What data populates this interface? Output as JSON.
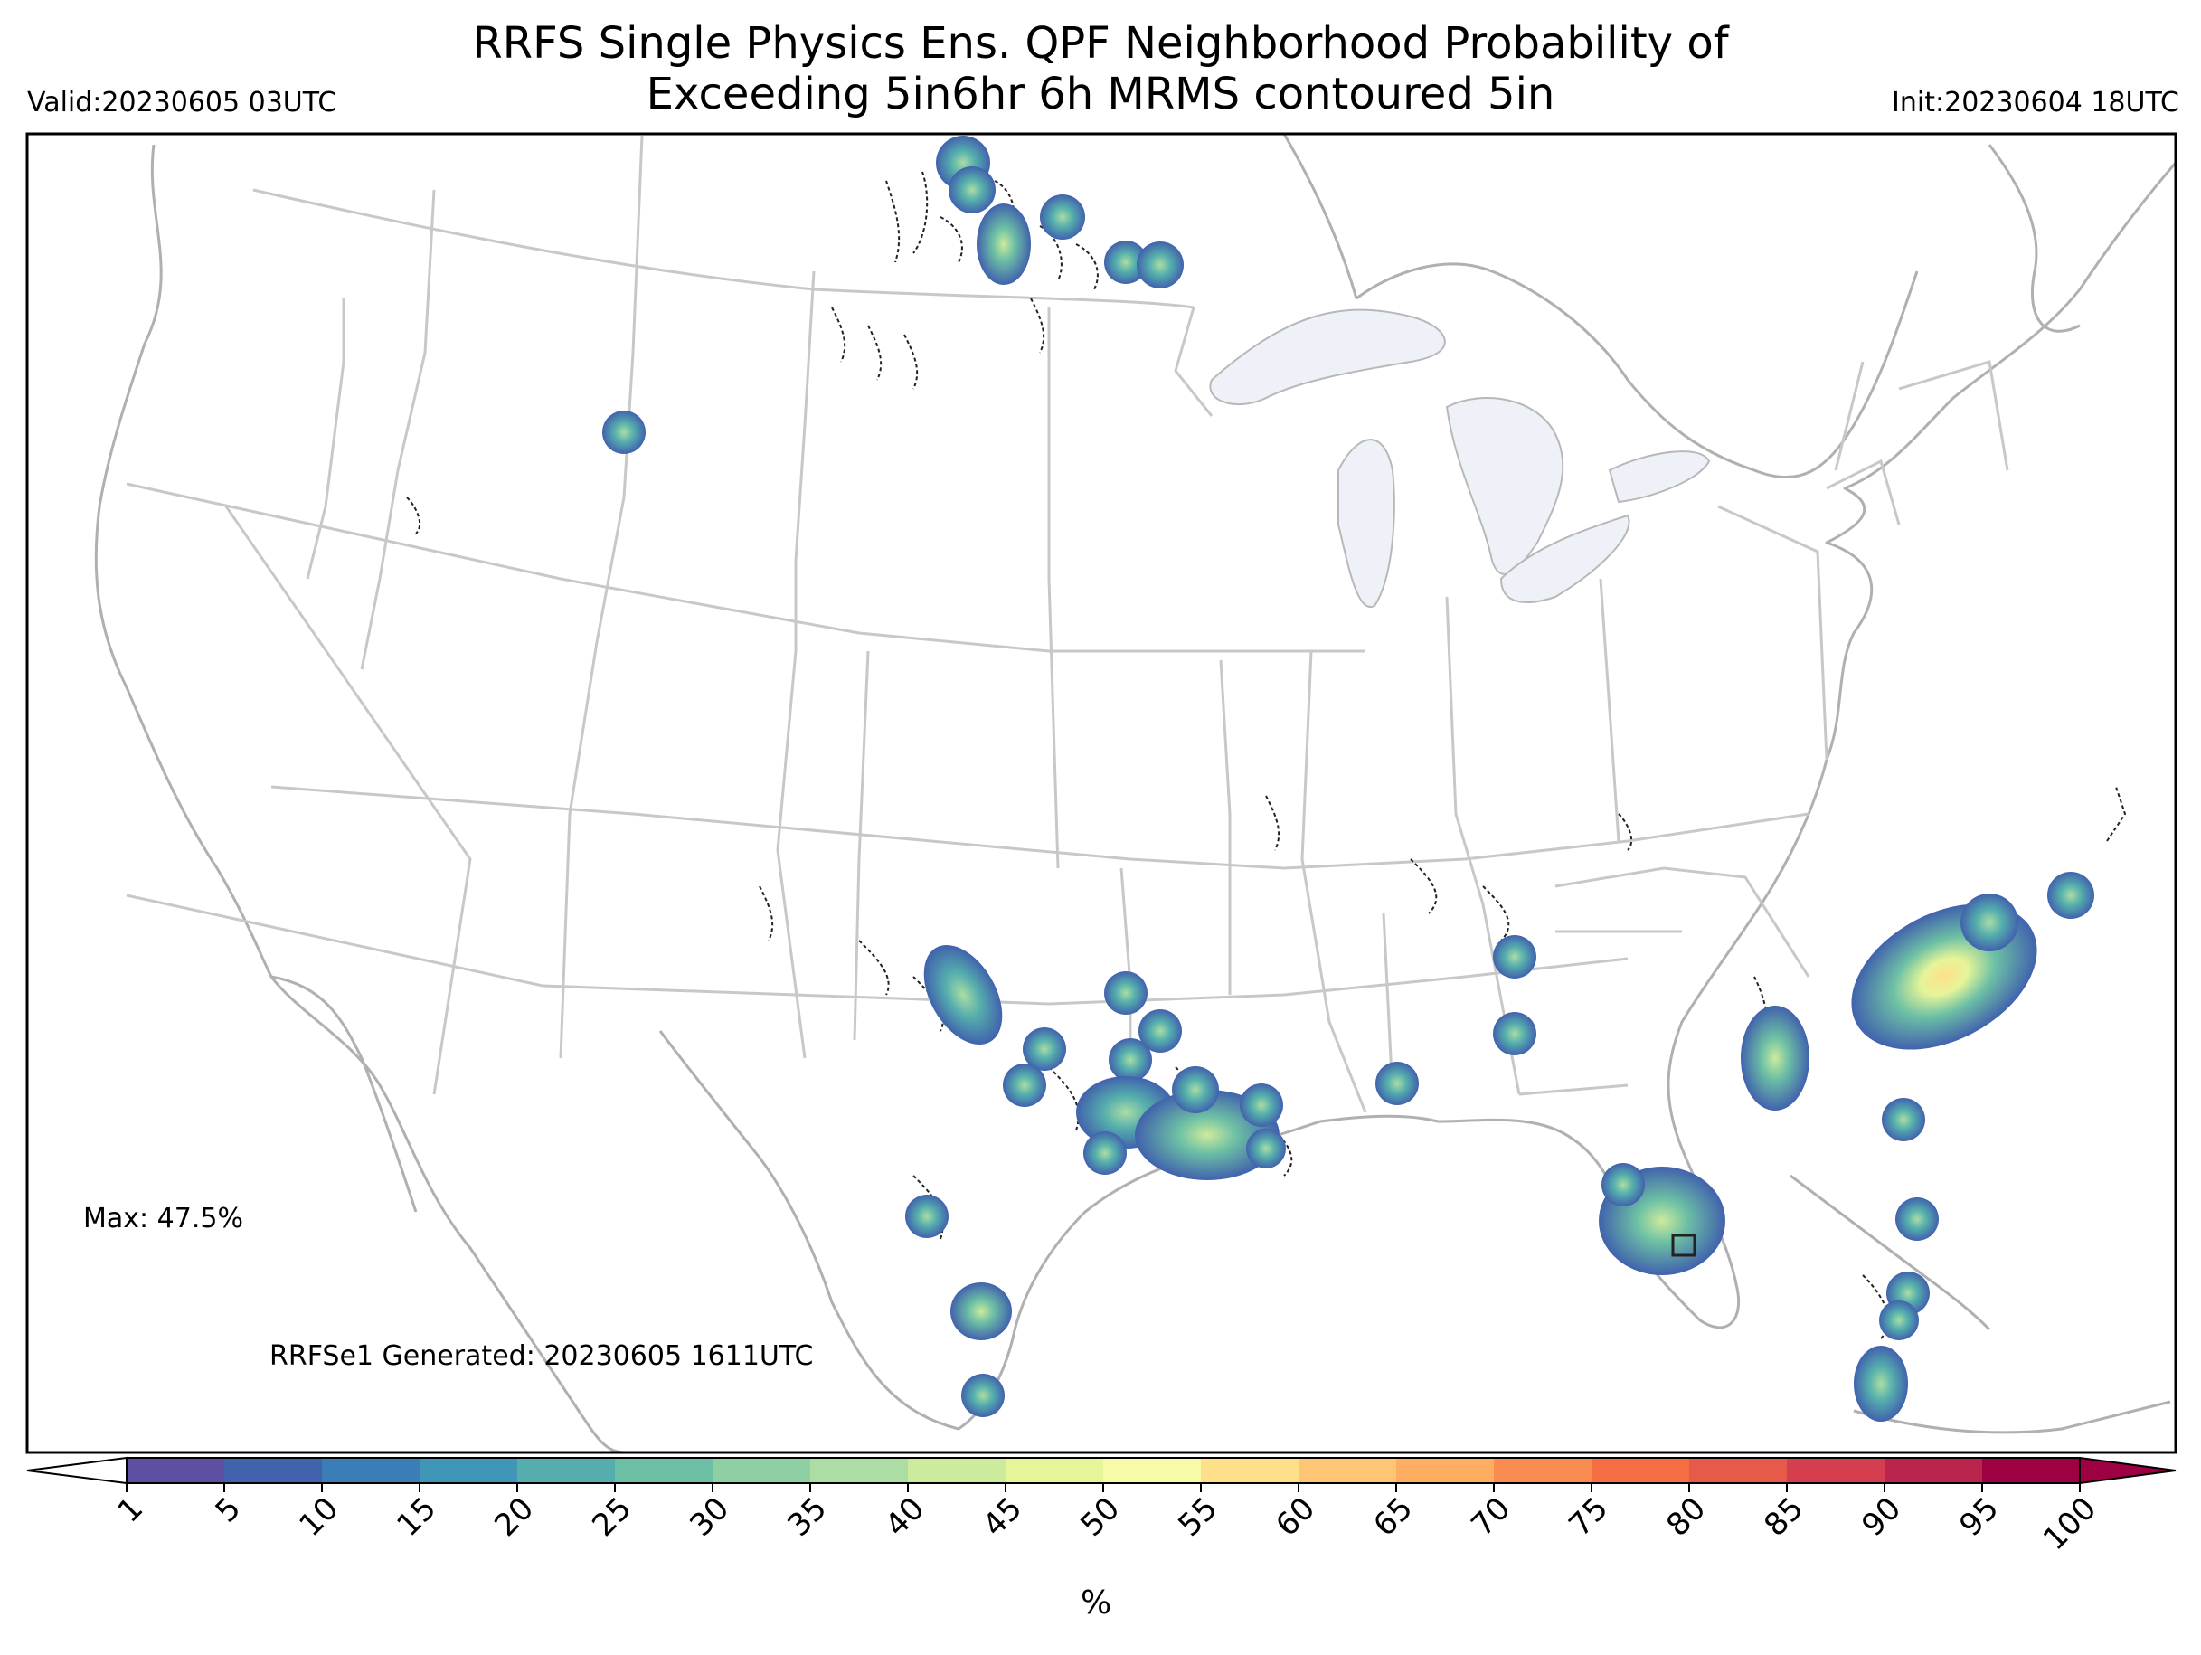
{
  "title": {
    "line1": "RRFS Single Physics Ens. QPF Neighborhood Probability of",
    "line2": "Exceeding 5in6hr 6h MRMS contoured 5in"
  },
  "valid_text": "Valid:20230605 03UTC",
  "init_text": "Init:20230604 18UTC",
  "max_text": "Max: 47.5%",
  "generated_text": "RRFSe1 Generated: 20230605 1611UTC",
  "colorbar": {
    "ticks": [
      "1",
      "5",
      "10",
      "15",
      "20",
      "25",
      "30",
      "35",
      "40",
      "45",
      "50",
      "55",
      "60",
      "65",
      "70",
      "75",
      "80",
      "85",
      "90",
      "95",
      "100"
    ],
    "unit": "%",
    "colors": [
      "#5e4fa2",
      "#4162ad",
      "#3b7db6",
      "#3f96b7",
      "#55aead",
      "#6dc0a5",
      "#8ed0a4",
      "#abdda4",
      "#cdeb9c",
      "#e6f598",
      "#f7fba7",
      "#fee08b",
      "#fdc574",
      "#fdae61",
      "#f88c51",
      "#f46d43",
      "#e55a49",
      "#d53e4f",
      "#b8244c",
      "#9e0142"
    ]
  },
  "colors": {
    "state_lines": "#c8c8c8",
    "coast_lines": "#b0b0b0",
    "lakes": "#eef2f8"
  }
}
